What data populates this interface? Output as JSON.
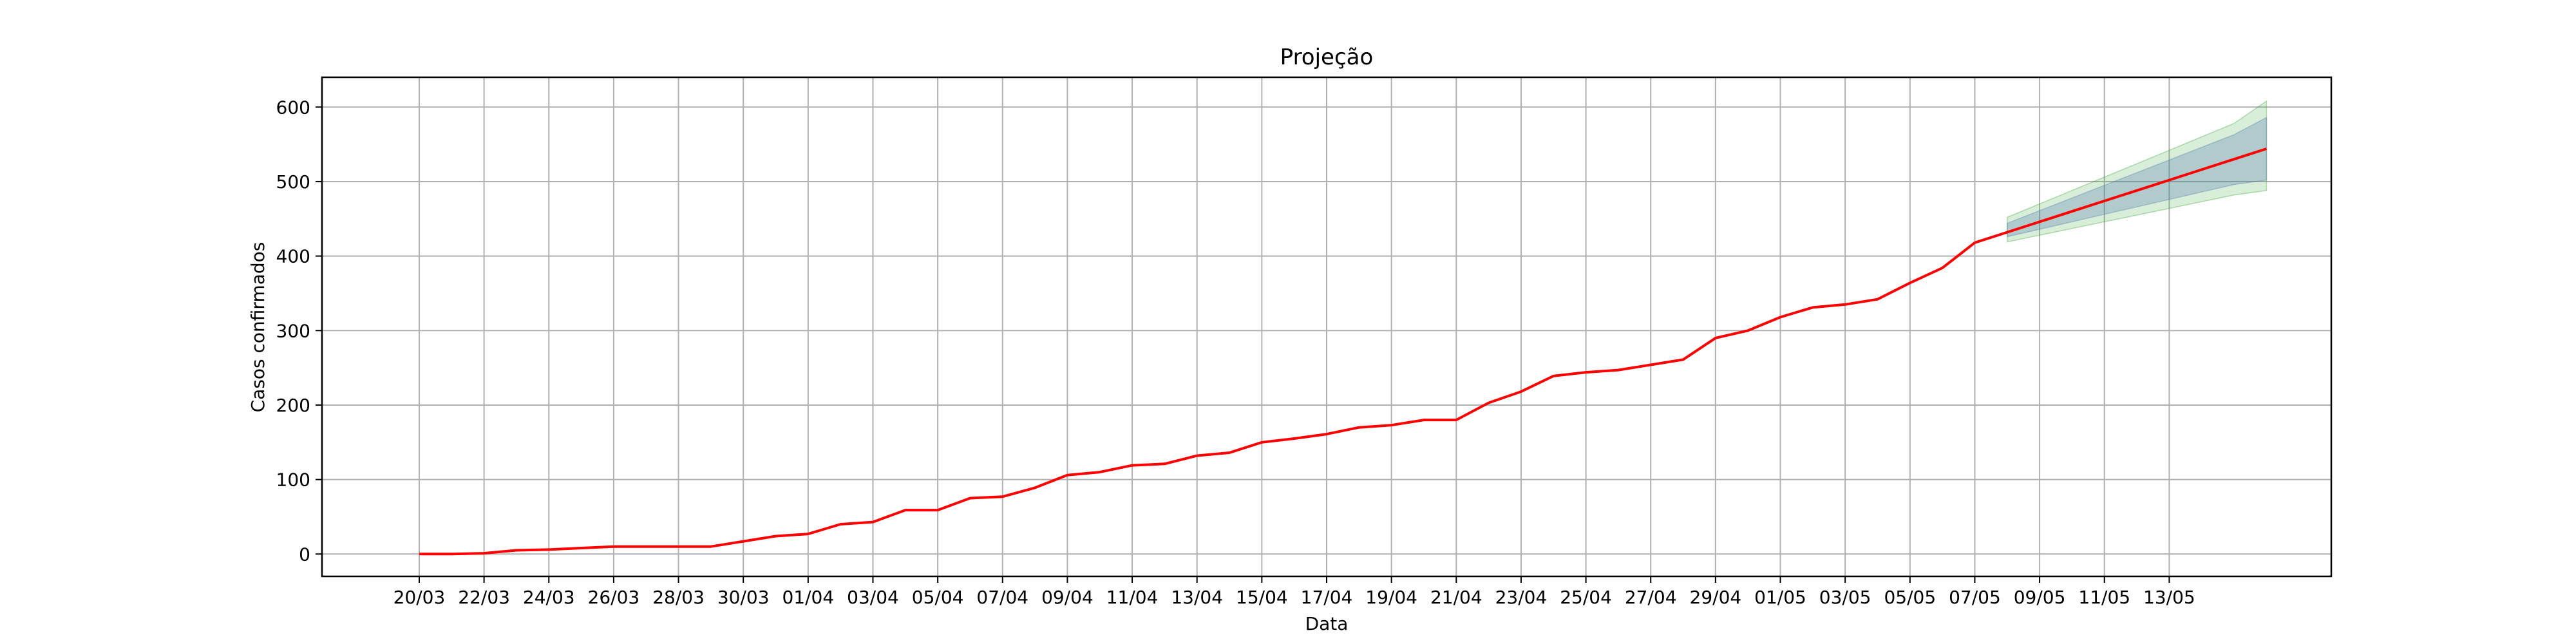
{
  "chart_data": {
    "type": "line",
    "title": "Projeção",
    "xlabel": "Data",
    "ylabel": "Casos confirmados",
    "grid": true,
    "colors": {
      "line": "#ff0000",
      "band_inner": "#4c72b0",
      "band_outer": "#2ca02c",
      "grid": "#b0b0b0",
      "axes": "#000000"
    },
    "ylim": [
      -30,
      640
    ],
    "yticks": [
      0,
      100,
      200,
      300,
      400,
      500,
      600
    ],
    "x_dates": [
      "20/03",
      "21/03",
      "22/03",
      "23/03",
      "24/03",
      "25/03",
      "26/03",
      "27/03",
      "28/03",
      "29/03",
      "30/03",
      "31/03",
      "01/04",
      "02/04",
      "03/04",
      "04/04",
      "05/04",
      "06/04",
      "07/04",
      "08/04",
      "09/04",
      "10/04",
      "11/04",
      "12/04",
      "13/04",
      "14/04",
      "15/04",
      "16/04",
      "17/04",
      "18/04",
      "19/04",
      "20/04",
      "21/04",
      "22/04",
      "23/04",
      "24/04",
      "25/04",
      "26/04",
      "27/04",
      "28/04",
      "29/04",
      "30/04",
      "01/05",
      "02/05",
      "03/05",
      "04/05",
      "05/05",
      "06/05",
      "07/05",
      "08/05",
      "09/05",
      "10/05",
      "11/05",
      "12/05",
      "13/05",
      "14/05"
    ],
    "xticks": [
      "20/03",
      "22/03",
      "24/03",
      "26/03",
      "28/03",
      "30/03",
      "01/04",
      "03/04",
      "05/04",
      "07/04",
      "09/04",
      "11/04",
      "13/04",
      "15/04",
      "17/04",
      "19/04",
      "21/04",
      "23/04",
      "25/04",
      "27/04",
      "29/04",
      "01/05",
      "03/05",
      "05/05",
      "07/05",
      "09/05",
      "11/05",
      "13/05"
    ],
    "xlim_dates": [
      "17/03",
      "18/05"
    ],
    "series": [
      {
        "values": [
          0,
          0,
          1,
          5,
          6,
          8,
          10,
          10,
          10,
          10,
          17,
          24,
          27,
          40,
          43,
          59,
          59,
          75,
          77,
          89,
          106,
          110,
          119,
          121,
          132,
          136,
          150,
          155,
          161,
          170,
          173,
          180,
          180,
          203,
          218,
          239,
          244,
          247,
          254,
          261,
          290,
          300,
          318,
          331,
          335,
          342,
          364,
          384,
          418
        ]
      },
      {
        "values": [
          418,
          432,
          446,
          460,
          474,
          488,
          502,
          516,
          530,
          544
        ],
        "start_date": "07/05"
      }
    ],
    "bands": [
      {
        "start_date": "08/05",
        "lower": [
          419,
          428,
          437,
          446,
          455,
          464,
          473,
          482,
          488
        ],
        "upper": [
          452,
          470,
          488,
          506,
          524,
          542,
          560,
          578,
          608
        ]
      },
      {
        "start_date": "08/05",
        "lower": [
          426,
          436,
          446,
          456,
          466,
          476,
          486,
          496,
          502
        ],
        "upper": [
          444,
          461,
          478,
          495,
          512,
          529,
          546,
          563,
          586
        ]
      }
    ]
  }
}
